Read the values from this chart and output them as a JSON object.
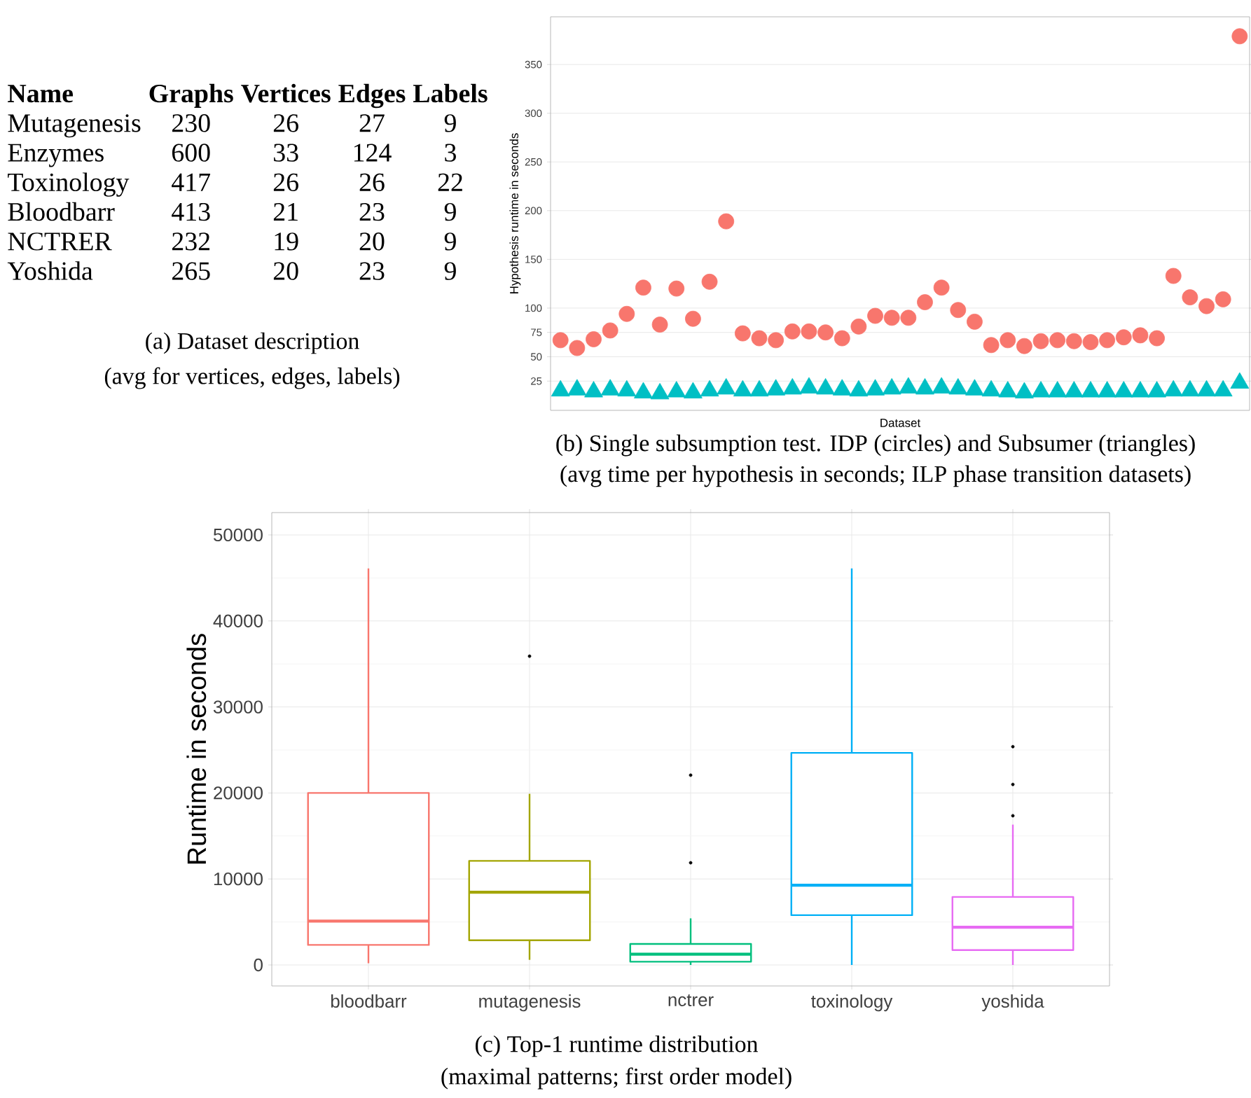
{
  "chart_data": [
    {
      "type": "other",
      "title": "(a) Dataset description",
      "subtitle": "(avg for vertices, edges, labels)",
      "xlabel": "Name",
      "data_labels": true,
      "categories": [
        "Mutagenesis",
        "Enzymes",
        "Toxinology",
        "Bloodbarr",
        "NCTRER",
        "Yoshida"
      ],
      "series": [
        {
          "name": "Graphs",
          "values": [
            230,
            600,
            417,
            413,
            232,
            265
          ]
        },
        {
          "name": "Vertices",
          "values": [
            26,
            33,
            26,
            21,
            19,
            20
          ]
        },
        {
          "name": "Edges",
          "values": [
            27,
            124,
            26,
            23,
            20,
            23
          ]
        },
        {
          "name": "Labels",
          "values": [
            9,
            3,
            22,
            9,
            9,
            9
          ]
        }
      ]
    },
    {
      "type": "scatter",
      "title": "(b) Single subsumption test. IDP (circles) and Subsumer (triangles)",
      "subtitle": "(avg time per hypothesis in seconds; ILP phase transition datasets)",
      "xlabel": "Dataset",
      "ylabel": "Hypothesis runtime in seconds",
      "categories": [
        null,
        null,
        null,
        null,
        null,
        null,
        null,
        null,
        null,
        null,
        null,
        null,
        null,
        null,
        null,
        null,
        null,
        null,
        null,
        null,
        null,
        null,
        null,
        null,
        null,
        null,
        null,
        null,
        null,
        null,
        null,
        null,
        null,
        null,
        null,
        null,
        null,
        null,
        null,
        null,
        null,
        null
      ],
      "ylim": [
        -5,
        399
      ],
      "yticks": [
        25,
        50,
        75,
        100,
        150,
        200,
        250,
        300,
        350
      ],
      "grid": "y",
      "series": [
        {
          "color": "#f8766d",
          "marker": "circle",
          "values": [
            67,
            59,
            68,
            77,
            94,
            121,
            83,
            120,
            89,
            127,
            189,
            74,
            69,
            67,
            76,
            76,
            75,
            69,
            81,
            92,
            90,
            90,
            106,
            121,
            98,
            86,
            62,
            67,
            61,
            66,
            67,
            66,
            65,
            67,
            70,
            72,
            69,
            133,
            111,
            102,
            109,
            379
          ]
        },
        {
          "color": "#00bfc4",
          "marker": "triangle",
          "values": [
            15,
            16,
            14,
            16,
            15,
            13,
            12,
            14,
            13,
            15,
            17,
            15,
            15,
            16,
            17,
            18,
            17,
            16,
            15,
            16,
            17,
            18,
            17,
            18,
            17,
            16,
            15,
            14,
            13,
            14,
            14,
            14,
            14,
            14,
            14,
            14,
            14,
            15,
            15,
            15,
            15,
            23
          ]
        }
      ]
    },
    {
      "type": "box",
      "title": "(c) Top-1 runtime distribution",
      "subtitle": "(maximal patterns; first order model)",
      "ylabel": "Runtime in seconds",
      "categories": [
        "bloodbarr",
        "mutagenesis",
        "nctrer",
        "toxinology",
        "yoshida"
      ],
      "colors": [
        "#f8766d",
        "#a3a500",
        "#00bf7d",
        "#00b0f6",
        "#e76bf3"
      ],
      "ylim": [
        -2440,
        52600
      ],
      "yticks": [
        0,
        10000,
        20000,
        30000,
        40000,
        50000
      ],
      "grid": true,
      "boxes": [
        {
          "low": 200,
          "q1": 2330,
          "median": 5100,
          "q3": 20000,
          "high": 46100
        },
        {
          "low": 600,
          "q1": 2870,
          "median": 8460,
          "q3": 12100,
          "high": 19900,
          "outliers": [
            35900
          ]
        },
        {
          "low": 0,
          "q1": 380,
          "median": 1250,
          "q3": 2440,
          "high": 5420,
          "outliers": [
            22070,
            11880
          ]
        },
        {
          "low": 0,
          "q1": 5790,
          "median": 9270,
          "q3": 24660,
          "high": 46100
        },
        {
          "low": 0,
          "q1": 1730,
          "median": 4390,
          "q3": 7910,
          "high": 16320,
          "outliers": [
            25380,
            20990,
            17350
          ]
        }
      ]
    }
  ]
}
